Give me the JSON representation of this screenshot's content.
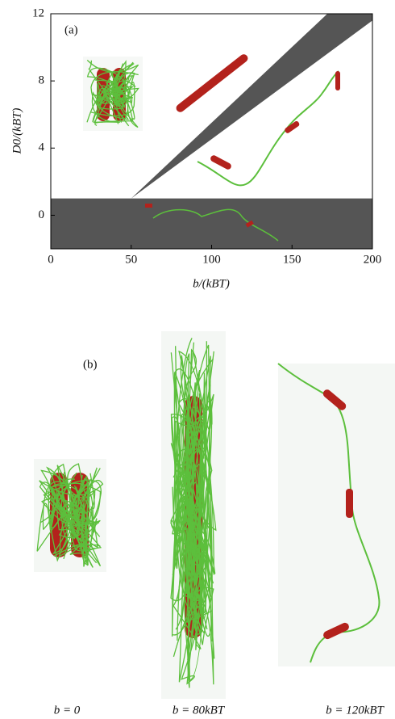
{
  "chart_data": {
    "type": "phase-diagram",
    "panel_label": "(a)",
    "xlabel": "b/(kBT)",
    "ylabel": "D0/(kBT)",
    "xlim": [
      0,
      200
    ],
    "ylim": [
      -2,
      12
    ],
    "xticks": [
      0,
      50,
      100,
      150,
      200
    ],
    "yticks": [
      0,
      4,
      8,
      12
    ],
    "region_color": "#555555",
    "regions": [
      {
        "x": [
          0,
          200,
          200,
          0
        ],
        "y": [
          -2,
          -2,
          1,
          1
        ]
      },
      {
        "x": [
          50,
          172,
          200,
          200
        ],
        "y": [
          1,
          12,
          12,
          11.6
        ]
      }
    ]
  },
  "panel_b": {
    "label": "(b)",
    "captions": [
      "b = 0",
      "b = 80kBT",
      "b = 120kBT"
    ]
  }
}
